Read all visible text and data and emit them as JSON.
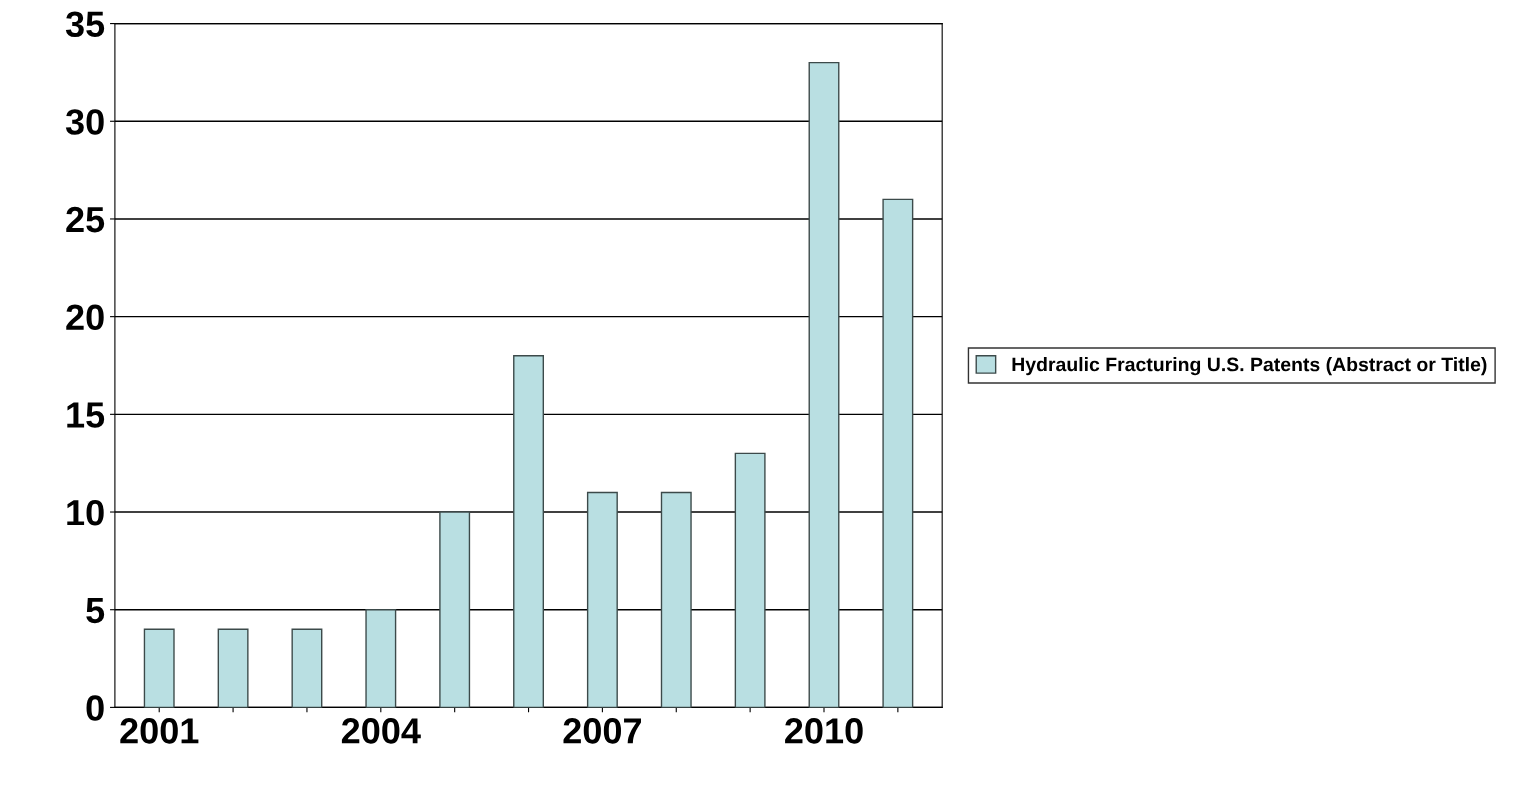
{
  "chart_data": {
    "type": "bar",
    "categories": [
      "2001",
      null,
      null,
      "2004",
      null,
      null,
      "2007",
      null,
      null,
      "2010",
      null
    ],
    "series": [
      {
        "name": "Hydraulic Fracturing U.S. Patents (Abstract or Title)",
        "color": "#b9dfe2",
        "values": [
          4,
          4,
          4,
          5,
          10,
          18,
          11,
          11,
          13,
          33,
          26
        ]
      }
    ],
    "ylim": [
      0,
      35
    ],
    "yticks": [
      0,
      5,
      10,
      15,
      20,
      25,
      30,
      35
    ],
    "grid": "y",
    "legend": "right"
  }
}
